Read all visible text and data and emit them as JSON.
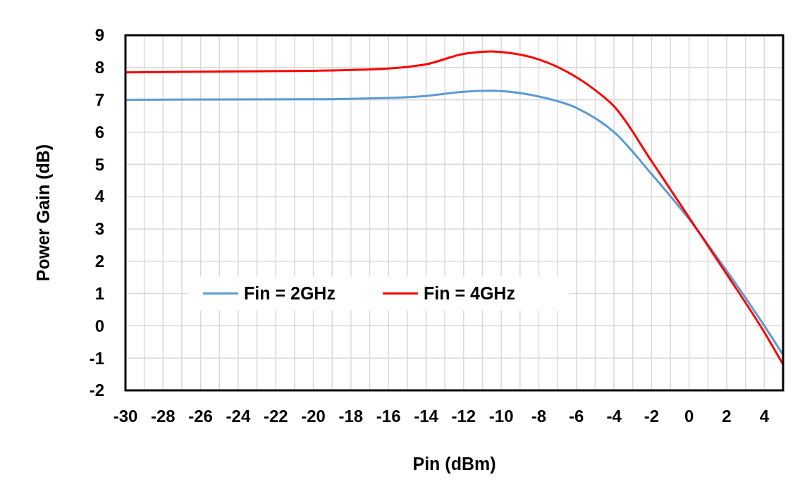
{
  "chart_data": {
    "type": "line",
    "xlabel": "Pin (dBm)",
    "ylabel": "Power Gain (dB)",
    "xlim": [
      -30,
      5
    ],
    "ylim": [
      -2,
      9
    ],
    "xticks": [
      -30,
      {
        "value": -29,
        "label": null
      },
      -28,
      {
        "value": -27,
        "label": null
      },
      -26,
      {
        "value": -25,
        "label": null
      },
      -24,
      {
        "value": -23,
        "label": null
      },
      -22,
      {
        "value": -21,
        "label": null
      },
      -20,
      {
        "value": -19,
        "label": null
      },
      -18,
      {
        "value": -17,
        "label": null
      },
      -16,
      {
        "value": -15,
        "label": null
      },
      -14,
      {
        "value": -13,
        "label": null
      },
      -12,
      {
        "value": -11,
        "label": null
      },
      -10,
      {
        "value": -9,
        "label": null
      },
      -8,
      {
        "value": -7,
        "label": null
      },
      -6,
      {
        "value": -5,
        "label": null
      },
      -4,
      {
        "value": -3,
        "label": null
      },
      -2,
      {
        "value": -1,
        "label": null
      },
      0,
      {
        "value": 1,
        "label": null
      },
      2,
      {
        "value": 3,
        "label": null
      },
      4
    ],
    "yticks": [
      -2,
      -1,
      0,
      1,
      2,
      3,
      4,
      5,
      6,
      7,
      8,
      9
    ],
    "grid": true,
    "legend": "bottom",
    "line_style": "solid",
    "marker": "none",
    "series": [
      {
        "name": "Fin = 2GHz",
        "color": "#5b9bd5",
        "x": [
          -30,
          -20,
          -16,
          -14,
          -12,
          -10.5,
          -10,
          -8,
          -6,
          -4,
          -2,
          0,
          2,
          4,
          5
        ],
        "values": [
          7.0,
          7.02,
          7.06,
          7.12,
          7.25,
          7.28,
          7.27,
          7.1,
          6.75,
          6.0,
          4.7,
          3.3,
          1.7,
          0.0,
          -0.9
        ]
      },
      {
        "name": "Fin = 4GHz",
        "color": "#ff0000",
        "x": [
          -30,
          -20,
          -16,
          -15,
          -14,
          -12,
          -10.5,
          -10,
          -8,
          -6,
          -5,
          -4,
          -2,
          0,
          2,
          4,
          5
        ],
        "values": [
          7.85,
          7.9,
          7.97,
          8.02,
          8.1,
          8.42,
          8.5,
          8.48,
          8.25,
          7.7,
          7.3,
          6.8,
          5.1,
          3.35,
          1.6,
          -0.2,
          -1.2
        ]
      }
    ]
  }
}
